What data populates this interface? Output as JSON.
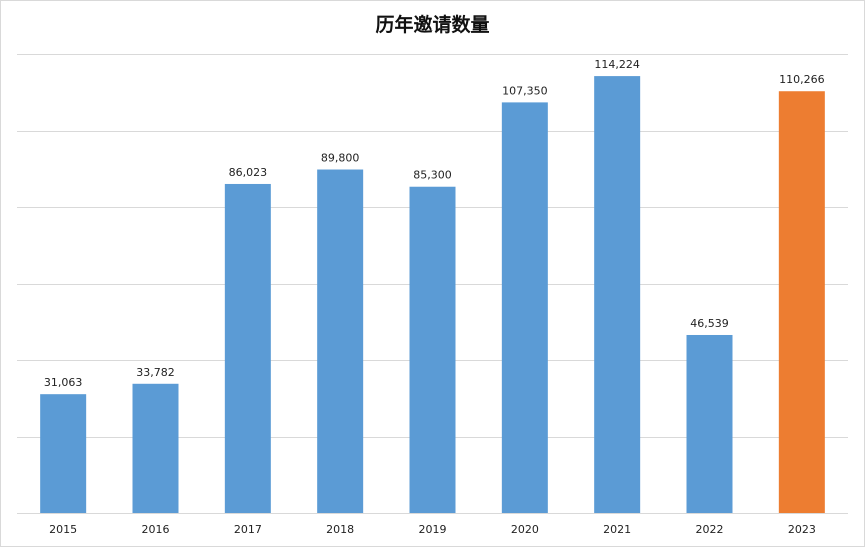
{
  "chart_data": {
    "type": "bar",
    "title": "历年邀请数量",
    "categories": [
      "2015",
      "2016",
      "2017",
      "2018",
      "2019",
      "2020",
      "2021",
      "2022",
      "2023"
    ],
    "values": [
      31063,
      33782,
      86023,
      89800,
      85300,
      107350,
      114224,
      46539,
      110266
    ],
    "value_labels": [
      "31,063",
      "33,782",
      "86,023",
      "89,800",
      "85,300",
      "107,350",
      "114,224",
      "46,539",
      "110,266"
    ],
    "ylim": [
      0,
      120000
    ],
    "grid": true,
    "legend": "none",
    "colors": {
      "bar": "#5b9bd5",
      "highlight": "#ed7d31",
      "highlight_category": "2023",
      "grid": "#d9d9d9"
    }
  }
}
